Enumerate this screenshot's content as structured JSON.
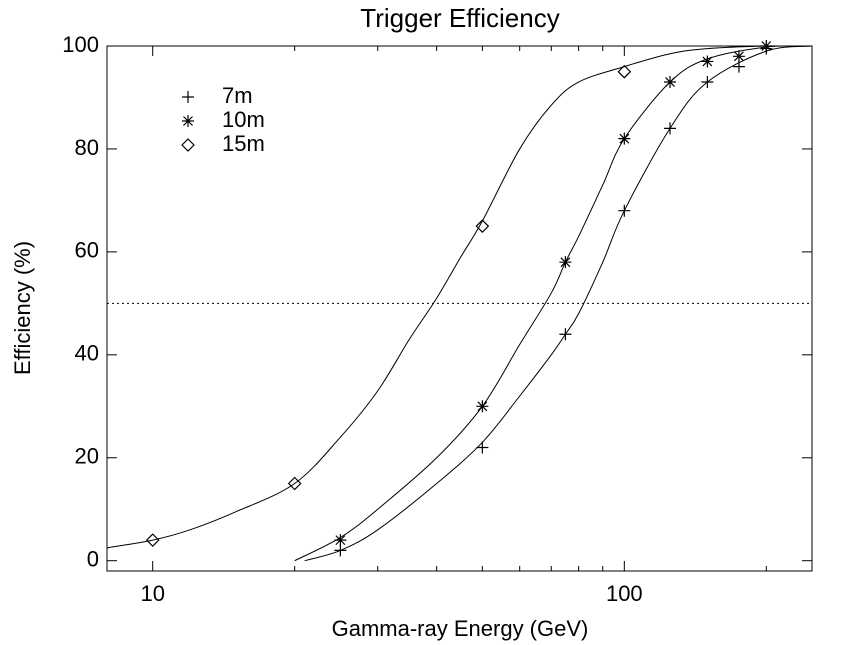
{
  "chart_data": {
    "type": "scatter",
    "title": "Trigger Efficiency",
    "xlabel": "Gamma-ray Energy (GeV)",
    "ylabel": "Efficiency (%)",
    "xscale": "log",
    "xlim": [
      8,
      250
    ],
    "ylim": [
      -2,
      100
    ],
    "xticks": [
      10,
      100
    ],
    "xminor": [
      20,
      30,
      40,
      50,
      60,
      70,
      80,
      90,
      200
    ],
    "yticks": [
      0,
      20,
      40,
      60,
      80,
      100
    ],
    "hline": 50,
    "legend": "upper left",
    "color": "#000000",
    "series": [
      {
        "name": "7m",
        "marker": "plus",
        "x": [
          25,
          50,
          75,
          100,
          125,
          150,
          175,
          200
        ],
        "values": [
          2,
          22,
          44,
          68,
          84,
          93,
          96,
          99.5
        ]
      },
      {
        "name": "10m",
        "marker": "asterisk",
        "x": [
          25,
          50,
          75,
          100,
          125,
          150,
          175,
          200
        ],
        "values": [
          4,
          30,
          58,
          82,
          93,
          97,
          98,
          100
        ]
      },
      {
        "name": "15m",
        "marker": "diamond",
        "x": [
          10,
          20,
          50,
          100
        ],
        "values": [
          4,
          15,
          65,
          95
        ]
      }
    ],
    "fits": [
      {
        "x": [
          21,
          25,
          30,
          40,
          50,
          60,
          70,
          75,
          80,
          90,
          100,
          125,
          150,
          200,
          250
        ],
        "values": [
          0,
          2,
          6,
          15,
          23,
          32,
          40,
          44,
          48,
          58,
          68,
          84,
          93,
          99,
          100
        ]
      },
      {
        "x": [
          20,
          25,
          30,
          40,
          50,
          60,
          70,
          75,
          80,
          90,
          100,
          125,
          150,
          200,
          250
        ],
        "values": [
          0,
          4.5,
          10,
          20,
          30,
          42,
          52,
          58,
          63,
          73,
          82,
          93,
          97.5,
          99.8,
          100
        ]
      },
      {
        "x": [
          8,
          10,
          12,
          15,
          20,
          25,
          30,
          35,
          40,
          45,
          50,
          60,
          70,
          80,
          100,
          125,
          150,
          200,
          250
        ],
        "values": [
          2.5,
          4,
          6,
          9.5,
          15,
          24,
          33,
          43,
          51,
          59,
          66,
          80,
          88.5,
          93,
          96,
          98.5,
          99.5,
          100,
          100
        ]
      }
    ]
  }
}
